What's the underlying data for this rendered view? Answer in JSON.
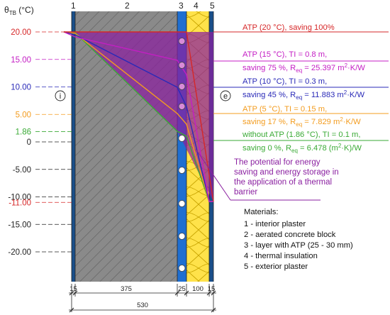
{
  "axis": {
    "label": "θTB (°C)",
    "label_main": "θ",
    "label_sub": "TB",
    "label_unit": " (°C)",
    "ticks": [
      {
        "label": "20.00",
        "value": 20,
        "color": "#d62728"
      },
      {
        "label": "15.00",
        "value": 15,
        "color": "#c41ec4"
      },
      {
        "label": "10.00",
        "value": 10,
        "color": "#2a2ab8"
      },
      {
        "label": "5.00",
        "value": 5,
        "color": "#f39c1f"
      },
      {
        "label": "1.86",
        "value": 1.86,
        "color": "#3aaa35"
      },
      {
        "label": "0",
        "value": 0,
        "color": "#222222"
      },
      {
        "label": "-5.00",
        "value": -5,
        "color": "#222222"
      },
      {
        "label": "-10.00",
        "value": -10,
        "color": "#222222"
      },
      {
        "label": "-11.00",
        "value": -11,
        "color": "#d62728"
      },
      {
        "label": "-15.00",
        "value": -15,
        "color": "#222222"
      },
      {
        "label": "-20.00",
        "value": -20,
        "color": "#222222"
      }
    ]
  },
  "layer_numbers": [
    "1",
    "2",
    "3",
    "4",
    "5"
  ],
  "side_labels": {
    "interior": "i",
    "exterior": "e"
  },
  "annotations": [
    {
      "id": "atp20",
      "color": "#d62728",
      "line1": "ATP (20 °C), saving 100%"
    },
    {
      "id": "atp15",
      "color": "#c41ec4",
      "line1": "ATP (15 °C), TI = 0.8 m,",
      "line2_pre": "saving 75 %, R",
      "sub": "eq",
      "line2_post": " = 25.397 m",
      "sup": "2",
      "line2_end": "·K/W"
    },
    {
      "id": "atp10",
      "color": "#2a2ab8",
      "line1": "ATP (10 °C), TI = 0.3 m,",
      "line2_pre": "saving 45 %, R",
      "sub": "eq",
      "line2_post": " = 11.883 m",
      "sup": "2",
      "line2_end": "·K/W"
    },
    {
      "id": "atp5",
      "color": "#f39c1f",
      "line1": "ATP (5 °C), TI = 0.15 m,",
      "line2_pre": "saving 17 %, R",
      "sub": "eq",
      "line2_post": " = 7.829 m",
      "sup": "2",
      "line2_end": "·K/W"
    },
    {
      "id": "noatp",
      "color": "#3aaa35",
      "line1": "without ATP (1.86 °C), TI = 0.1 m,",
      "line2_pre": "saving 0 %, R",
      "sub": "eq",
      "line2_post": " = 6.478 (m",
      "sup": "2",
      "line2_end": "·K)/W"
    }
  ],
  "potential_text": [
    "The potential for energy",
    "saving and energy storage in",
    "the application of a thermal",
    "barrier"
  ],
  "materials": {
    "heading": "Materials:",
    "items": [
      "1 - interior plaster",
      "2 - aerated concrete block",
      "3 - layer with ATP (25 - 30 mm)",
      "4 - thermal insulation",
      "5 - exterior plaster"
    ]
  },
  "dimensions": {
    "segments": [
      "15",
      "375",
      "25",
      "100",
      "15"
    ],
    "total": "530"
  },
  "colors": {
    "concrete": "#808080",
    "atp_layer": "#1f6fd1",
    "insulation": "#ffe24a",
    "plaster": "#1a4f8a",
    "potential_fill": "#8a1fa0",
    "atp20": "#d62728",
    "atp15": "#c41ec4",
    "atp10": "#2a2ab8",
    "atp5": "#f39c1f",
    "noatp": "#3aaa35"
  }
}
